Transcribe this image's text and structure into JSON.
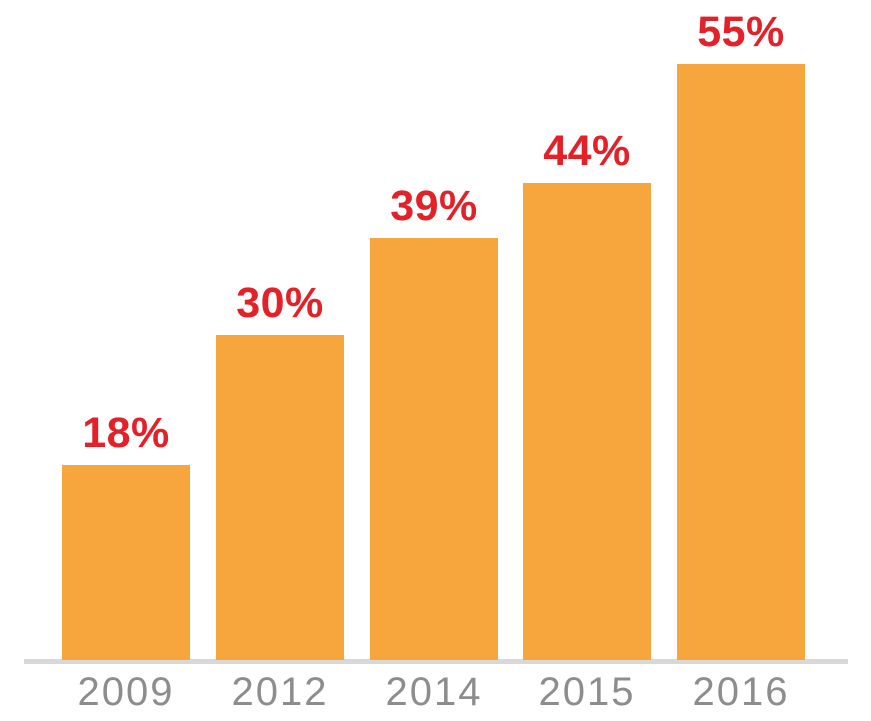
{
  "chart_data": {
    "type": "bar",
    "title": "",
    "xlabel": "",
    "ylabel": "",
    "categories": [
      "2009",
      "2012",
      "2014",
      "2015",
      "2016"
    ],
    "values": [
      18,
      30,
      39,
      44,
      55
    ],
    "value_labels": [
      "18%",
      "30%",
      "39%",
      "44%",
      "55%"
    ],
    "ylim": [
      0,
      60
    ],
    "grid": false,
    "legend": "none",
    "colors": {
      "bar": "#f6a63d",
      "value_label": "#e32128",
      "category_label": "#8d8d8d",
      "axis_line": "#d8d8d8",
      "background": "#ffffff"
    }
  }
}
